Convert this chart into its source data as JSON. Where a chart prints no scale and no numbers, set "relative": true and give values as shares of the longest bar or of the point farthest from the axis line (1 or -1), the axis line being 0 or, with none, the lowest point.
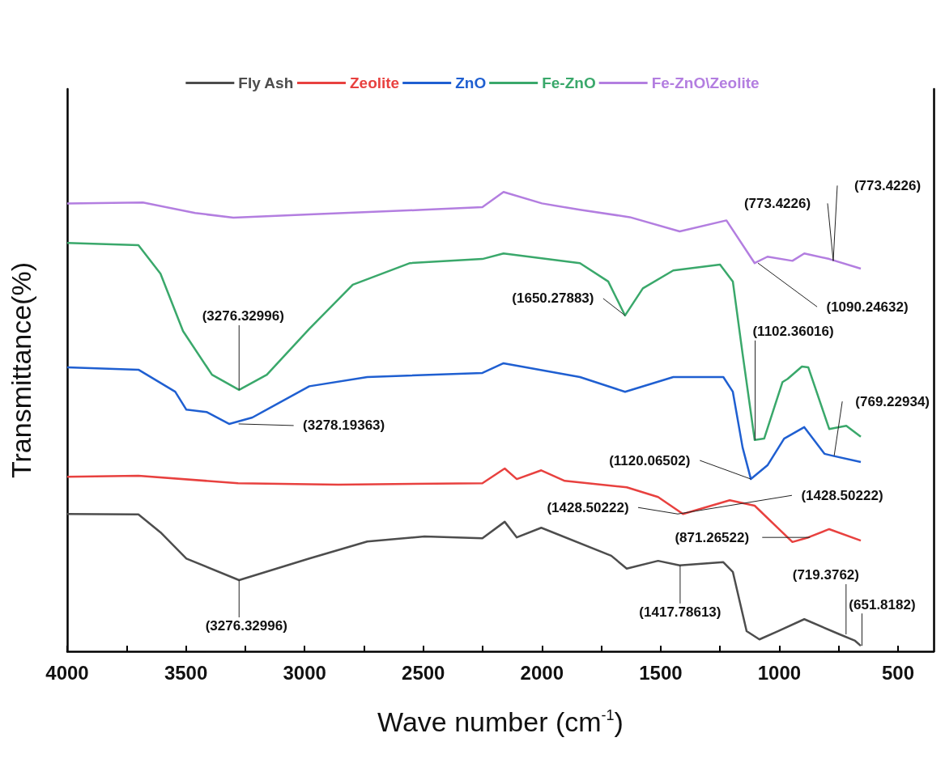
{
  "chart_data": {
    "type": "line",
    "relative": true,
    "xlabel": "Wave number (cm$^{-1}$)",
    "ylabel": "Transmittance(%)",
    "xlim": [
      4000,
      350
    ],
    "xticks": [
      4000,
      {
        "value": 3750,
        "label": null
      },
      3500,
      {
        "value": 3250,
        "label": null
      },
      3000,
      {
        "value": 2750,
        "label": null
      },
      2500,
      {
        "value": 2250,
        "label": null
      },
      2000,
      {
        "value": 1750,
        "label": null
      },
      1500,
      {
        "value": 1250,
        "label": null
      },
      1000,
      {
        "value": 750,
        "label": null
      },
      500
    ],
    "legend": "top",
    "grid": false,
    "marker": "none",
    "line_style": "solid",
    "series": [
      {
        "name": "Fly Ash",
        "color": "#4d4d4d",
        "x": [
          4000,
          3700,
          3607,
          3498,
          3276,
          2980,
          2736,
          2495,
          2251,
          2157,
          2106,
          2003,
          1708,
          1643,
          1511,
          1420,
          1236,
          1196,
          1138,
          1084,
          1006,
          895,
          746,
          681,
          657
        ],
        "values": [
          0.299,
          0.298,
          0.259,
          0.202,
          0.155,
          0.202,
          0.239,
          0.25,
          0.246,
          0.282,
          0.248,
          0.269,
          0.208,
          0.18,
          0.197,
          0.187,
          0.194,
          0.173,
          0.044,
          0.026,
          0.044,
          0.07,
          0.037,
          0.023,
          0.012
        ]
      },
      {
        "name": "Zeolite",
        "color": "#e8413f",
        "x": [
          4000,
          3700,
          3280,
          2858,
          2251,
          2157,
          2106,
          2003,
          1904,
          1643,
          1511,
          1406,
          1209,
          1104,
          945,
          878,
          790,
          657
        ],
        "values": [
          0.38,
          0.382,
          0.366,
          0.363,
          0.366,
          0.398,
          0.375,
          0.394,
          0.371,
          0.357,
          0.336,
          0.299,
          0.329,
          0.317,
          0.238,
          0.248,
          0.266,
          0.241
        ]
      },
      {
        "name": "ZnO",
        "color": "#1f5fd1",
        "x": [
          4000,
          3700,
          3545,
          3498,
          3413,
          3318,
          3220,
          2980,
          2736,
          2251,
          2162,
          1840,
          1650,
          1447,
          1236,
          1196,
          1155,
          1120,
          1050,
          980,
          895,
          810,
          778,
          657
        ],
        "values": [
          0.618,
          0.613,
          0.565,
          0.526,
          0.521,
          0.495,
          0.509,
          0.577,
          0.597,
          0.606,
          0.627,
          0.597,
          0.565,
          0.597,
          0.597,
          0.565,
          0.444,
          0.375,
          0.405,
          0.463,
          0.488,
          0.43,
          0.426,
          0.412
        ]
      },
      {
        "name": "Fe-ZnO",
        "color": "#3aa86b",
        "x": [
          4000,
          3700,
          3607,
          3512,
          3390,
          3276,
          3159,
          2980,
          2797,
          2556,
          2251,
          2162,
          1840,
          1721,
          1650,
          1575,
          1447,
          1250,
          1196,
          1155,
          1104,
          1064,
          987,
          965,
          905,
          878,
          790,
          718,
          657
        ],
        "values": [
          0.889,
          0.884,
          0.822,
          0.697,
          0.602,
          0.569,
          0.602,
          0.702,
          0.798,
          0.845,
          0.854,
          0.866,
          0.845,
          0.805,
          0.731,
          0.79,
          0.829,
          0.842,
          0.805,
          0.648,
          0.46,
          0.463,
          0.586,
          0.593,
          0.62,
          0.618,
          0.484,
          0.491,
          0.467
        ]
      },
      {
        "name": "Fe-ZnO\\Zeolite",
        "color": "#b37ee0",
        "x": [
          4000,
          3681,
          3461,
          3300,
          2980,
          2500,
          2251,
          2162,
          2000,
          1840,
          1630,
          1420,
          1223,
          1104,
          1050,
          945,
          895,
          790,
          657
        ],
        "values": [
          0.975,
          0.977,
          0.954,
          0.944,
          0.951,
          0.961,
          0.967,
          1.0,
          0.975,
          0.961,
          0.945,
          0.914,
          0.938,
          0.845,
          0.859,
          0.85,
          0.866,
          0.854,
          0.833
        ]
      }
    ],
    "annotations": [
      {
        "text": "(3276.32996)",
        "x": 3276,
        "y": 0.569
      },
      {
        "text": "(3278.19363)",
        "x": 3278,
        "y": 0.495
      },
      {
        "text": "(1650.27883)",
        "x": 1650,
        "y": 0.731
      },
      {
        "text": "(773.4226)",
        "x": 773,
        "y": 0.85
      },
      {
        "text": "(773.4226)",
        "x": 773,
        "y": 0.85
      },
      {
        "text": "(1090.24632)",
        "x": 1090,
        "y": 0.845
      },
      {
        "text": "(1102.36016)",
        "x": 1102,
        "y": 0.46
      },
      {
        "text": "(769.22934)",
        "x": 769,
        "y": 0.426
      },
      {
        "text": "(1120.06502)",
        "x": 1120,
        "y": 0.375
      },
      {
        "text": "(1428.50222)",
        "x": 1428,
        "y": 0.299
      },
      {
        "text": "(1428.50222)",
        "x": 1428,
        "y": 0.299
      },
      {
        "text": "(871.26522)",
        "x": 871,
        "y": 0.248
      },
      {
        "text": "(1417.78613)",
        "x": 1418,
        "y": 0.187
      },
      {
        "text": "(719.3762)",
        "x": 719,
        "y": 0.037
      },
      {
        "text": "(651.8182)",
        "x": 652,
        "y": 0.012
      },
      {
        "text": "(3276.32996)",
        "x": 3276,
        "y": 0.155
      }
    ]
  }
}
